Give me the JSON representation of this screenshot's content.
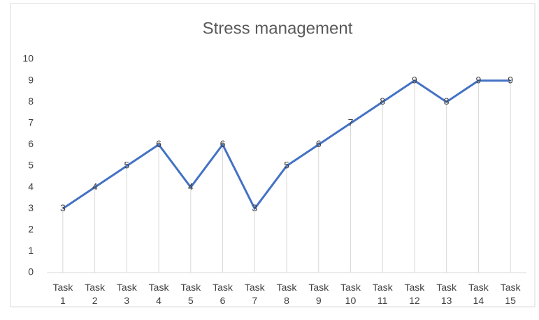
{
  "chart_data": {
    "type": "line",
    "title": "Stress management",
    "categories": [
      "Task 1",
      "Task 2",
      "Task 3",
      "Task 4",
      "Task 5",
      "Task 6",
      "Task 7",
      "Task 8",
      "Task 9",
      "Task 10",
      "Task 11",
      "Task 12",
      "Task 13",
      "Task 14",
      "Task 15"
    ],
    "values": [
      3,
      4,
      5,
      6,
      4,
      6,
      3,
      5,
      6,
      7,
      8,
      9,
      8,
      9,
      9
    ],
    "color": "#4472c4",
    "drop_lines": true,
    "data_labels": true,
    "ylim": [
      0,
      10
    ],
    "yticks": [
      0,
      1,
      2,
      3,
      4,
      5,
      6,
      7,
      8,
      9,
      10
    ]
  }
}
